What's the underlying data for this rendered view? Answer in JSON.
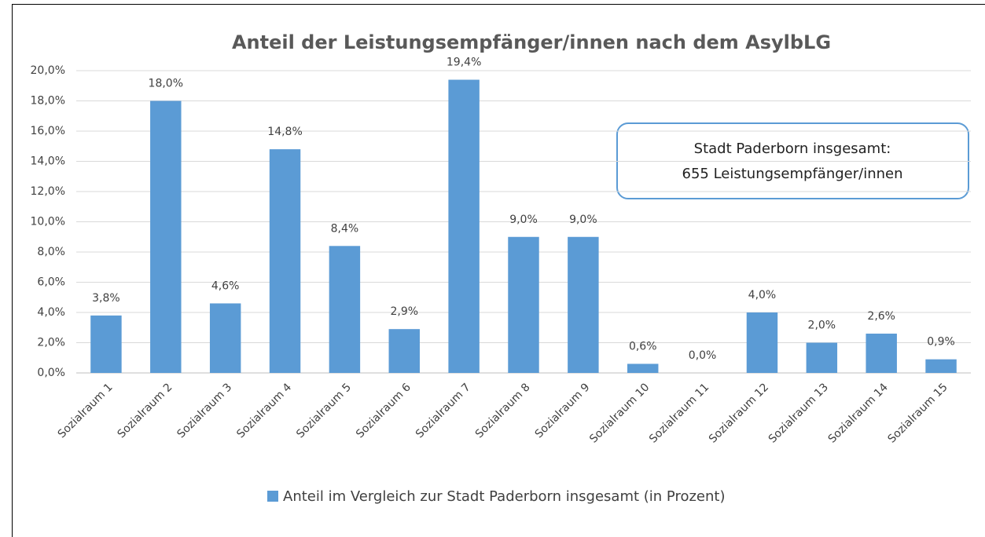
{
  "chart_data": {
    "type": "bar",
    "title": "Anteil der Leistungsempfänger/innen nach dem AsylbLG",
    "categories": [
      "Sozialraum 1",
      "Sozialraum 2",
      "Sozialraum 3",
      "Sozialraum 4",
      "Sozialraum 5",
      "Sozialraum 6",
      "Sozialraum 7",
      "Sozialraum 8",
      "Sozialraum 9",
      "Sozialraum 10",
      "Sozialraum 11",
      "Sozialraum 12",
      "Sozialraum 13",
      "Sozialraum 14",
      "Sozialraum 15"
    ],
    "series": [
      {
        "name": "Anteil im Vergleich zur Stadt Paderborn insgesamt (in Prozent)",
        "color": "#5b9bd5",
        "values": [
          3.8,
          18.0,
          4.6,
          14.8,
          8.4,
          2.9,
          19.4,
          9.0,
          9.0,
          0.6,
          0.0,
          4.0,
          2.0,
          2.6,
          0.9
        ],
        "value_labels": [
          "3,8%",
          "18,0%",
          "4,6%",
          "14,8%",
          "8,4%",
          "2,9%",
          "19,4%",
          "9,0%",
          "9,0%",
          "0,6%",
          "0,0%",
          "4,0%",
          "2,0%",
          "2,6%",
          "0,9%"
        ]
      }
    ],
    "ylim": [
      0,
      20
    ],
    "yticks": [
      {
        "value": 0,
        "label": "0,0%"
      },
      {
        "value": 2,
        "label": "2,0%"
      },
      {
        "value": 4,
        "label": "4,0%"
      },
      {
        "value": 6,
        "label": "6,0%"
      },
      {
        "value": 8,
        "label": "8,0%"
      },
      {
        "value": 10,
        "label": "10,0%"
      },
      {
        "value": 12,
        "label": "12,0%"
      },
      {
        "value": 14,
        "label": "14,0%"
      },
      {
        "value": 16,
        "label": "16,0%"
      },
      {
        "value": 18,
        "label": "18,0%"
      },
      {
        "value": 20,
        "label": "20,0%"
      }
    ],
    "grid": true,
    "legend": "bottom",
    "annotations": [
      "Stadt Paderborn insgesamt:",
      "655 Leistungsempfänger/innen"
    ]
  }
}
